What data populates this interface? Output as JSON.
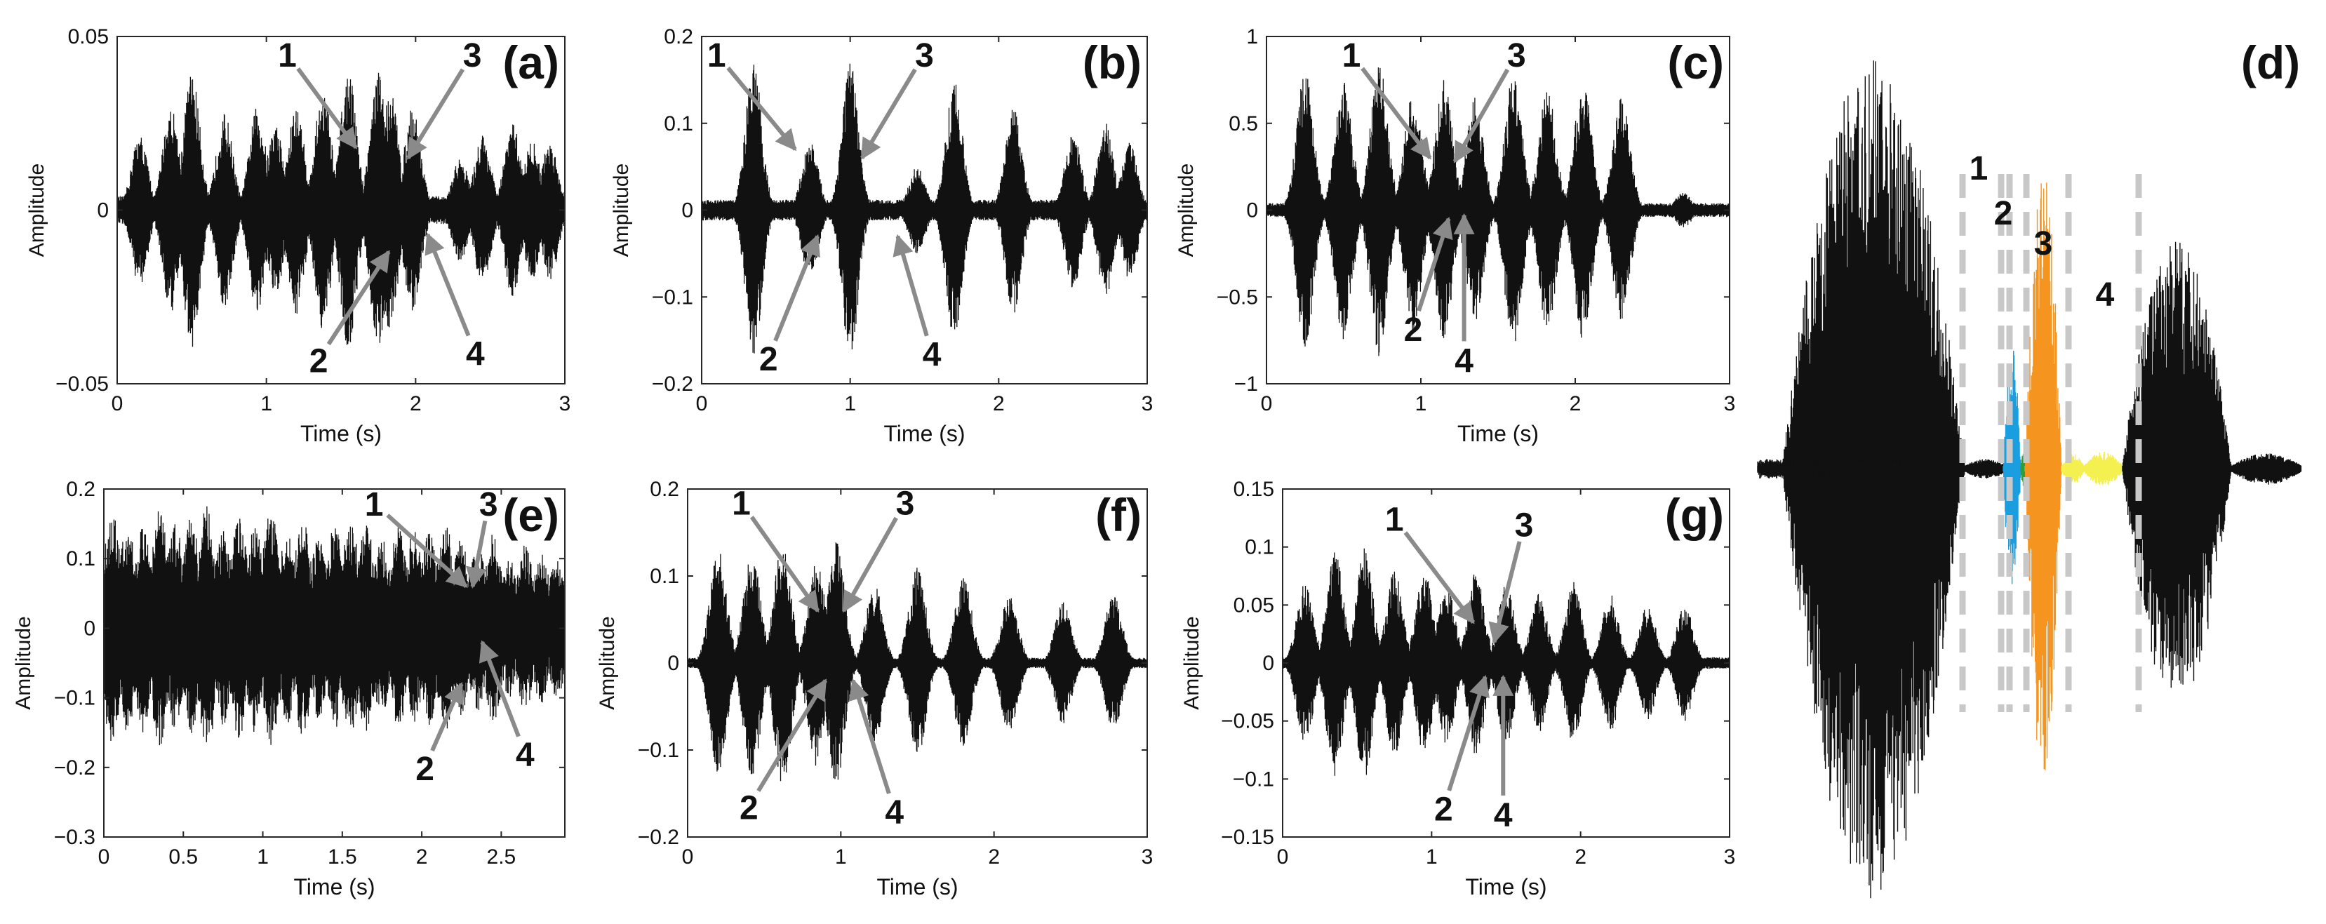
{
  "chart_data": [
    {
      "type": "line",
      "panel_label": "(a)",
      "title": "",
      "xlabel": "Time (s)",
      "ylabel": "Amplitude",
      "xlim": [
        0,
        3
      ],
      "ylim": [
        -0.05,
        0.05
      ],
      "xticks": [
        0,
        1,
        2,
        3
      ],
      "xtick_labels": [
        "0",
        "1",
        "2",
        "3"
      ],
      "yticks": [
        -0.05,
        0,
        0.05
      ],
      "ytick_labels": [
        "−0.05",
        "0",
        "0.05"
      ],
      "series": [
        {
          "name": "waveform",
          "burst_times": [
            0.15,
            0.36,
            0.5,
            0.72,
            0.94,
            1.06,
            1.2,
            1.38,
            1.55,
            1.75,
            1.83,
            1.98,
            2.3,
            2.45,
            2.65,
            2.78,
            2.9
          ],
          "burst_peaks": [
            0.022,
            0.03,
            0.04,
            0.028,
            0.03,
            0.025,
            0.03,
            0.035,
            0.04,
            0.04,
            0.035,
            0.03,
            0.015,
            0.022,
            0.025,
            0.02,
            0.02
          ],
          "noise": 0.004
        }
      ],
      "annotations": [
        {
          "text": "1",
          "value_x": 1.6,
          "value_y": 0.018,
          "label_x": 1.14,
          "label_y": 0.045
        },
        {
          "text": "3",
          "value_x": 1.95,
          "value_y": 0.015,
          "label_x": 2.38,
          "label_y": 0.045
        },
        {
          "text": "2",
          "value_x": 1.82,
          "value_y": -0.012,
          "label_x": 1.35,
          "label_y": -0.043
        },
        {
          "text": "4",
          "value_x": 2.08,
          "value_y": -0.007,
          "label_x": 2.4,
          "label_y": -0.041
        }
      ]
    },
    {
      "type": "line",
      "panel_label": "(b)",
      "title": "",
      "xlabel": "Time (s)",
      "ylabel": "Amplitude",
      "xlim": [
        0,
        3
      ],
      "ylim": [
        -0.2,
        0.2
      ],
      "xticks": [
        0,
        1,
        2,
        3
      ],
      "xtick_labels": [
        "0",
        "1",
        "2",
        "3"
      ],
      "yticks": [
        -0.2,
        -0.1,
        0,
        0.1,
        0.2
      ],
      "ytick_labels": [
        "−0.2",
        "−0.1",
        "0",
        "0.1",
        "0.2"
      ],
      "series": [
        {
          "name": "waveform",
          "burst_times": [
            0.35,
            0.73,
            1.0,
            1.45,
            1.7,
            2.1,
            2.5,
            2.72,
            2.88
          ],
          "burst_peaks": [
            0.17,
            0.08,
            0.17,
            0.05,
            0.15,
            0.12,
            0.09,
            0.1,
            0.08
          ],
          "noise": 0.012
        }
      ],
      "annotations": [
        {
          "text": "1",
          "value_x": 0.63,
          "value_y": 0.07,
          "label_x": 0.1,
          "label_y": 0.18
        },
        {
          "text": "3",
          "value_x": 1.08,
          "value_y": 0.06,
          "label_x": 1.5,
          "label_y": 0.18
        },
        {
          "text": "2",
          "value_x": 0.78,
          "value_y": -0.03,
          "label_x": 0.45,
          "label_y": -0.17
        },
        {
          "text": "4",
          "value_x": 1.32,
          "value_y": -0.03,
          "label_x": 1.55,
          "label_y": -0.165
        }
      ]
    },
    {
      "type": "line",
      "panel_label": "(c)",
      "title": "",
      "xlabel": "Time (s)",
      "ylabel": "Amplitude",
      "xlim": [
        0,
        3
      ],
      "ylim": [
        -1,
        1
      ],
      "xticks": [
        0,
        1,
        2,
        3
      ],
      "xtick_labels": [
        "0",
        "1",
        "2",
        "3"
      ],
      "yticks": [
        -1,
        -0.5,
        0,
        0.5,
        1
      ],
      "ytick_labels": [
        "−1",
        "−0.5",
        "0",
        "0.5",
        "1"
      ],
      "series": [
        {
          "name": "waveform",
          "burst_times": [
            0.25,
            0.5,
            0.73,
            0.95,
            1.15,
            1.35,
            1.6,
            1.82,
            2.05,
            2.3,
            2.7
          ],
          "burst_peaks": [
            0.8,
            0.75,
            0.85,
            0.7,
            0.75,
            0.65,
            0.8,
            0.7,
            0.75,
            0.65,
            0.1
          ],
          "noise": 0.04
        }
      ],
      "annotations": [
        {
          "text": "1",
          "value_x": 1.06,
          "value_y": 0.3,
          "label_x": 0.55,
          "label_y": 0.9
        },
        {
          "text": "3",
          "value_x": 1.22,
          "value_y": 0.28,
          "label_x": 1.62,
          "label_y": 0.9
        },
        {
          "text": "2",
          "value_x": 1.18,
          "value_y": -0.05,
          "label_x": 0.95,
          "label_y": -0.68
        },
        {
          "text": "4",
          "value_x": 1.28,
          "value_y": -0.03,
          "label_x": 1.28,
          "label_y": -0.86
        }
      ]
    },
    {
      "type": "image",
      "panel_label": "(d)",
      "title": "",
      "segments": [
        {
          "text": "1",
          "color": "#1a9ee0"
        },
        {
          "text": "2",
          "color": "#2d9e3e"
        },
        {
          "text": "3",
          "color": "#f5941e"
        },
        {
          "text": "4",
          "color": "#f3f050"
        }
      ]
    },
    {
      "type": "line",
      "panel_label": "(e)",
      "title": "",
      "xlabel": "Time (s)",
      "ylabel": "Amplitude",
      "xlim": [
        0,
        2.9
      ],
      "ylim": [
        -0.3,
        0.2
      ],
      "xticks": [
        0,
        0.5,
        1,
        1.5,
        2,
        2.5
      ],
      "xtick_labels": [
        "0",
        "0.5",
        "1",
        "1.5",
        "2",
        "2.5"
      ],
      "yticks": [
        -0.3,
        -0.2,
        -0.1,
        0,
        0.1,
        0.2
      ],
      "ytick_labels": [
        "−0.3",
        "−0.2",
        "−0.1",
        "0",
        "0.1",
        "0.2"
      ],
      "series": [
        {
          "name": "waveform",
          "burst_times": [
            0.05,
            0.15,
            0.25,
            0.35,
            0.45,
            0.55,
            0.65,
            0.75,
            0.85,
            0.95,
            1.05,
            1.15,
            1.25,
            1.35,
            1.45,
            1.55,
            1.65,
            1.75,
            1.85,
            1.95,
            2.05,
            2.15,
            2.25,
            2.35,
            2.45,
            2.55,
            2.65,
            2.75,
            2.85
          ],
          "burst_peaks": [
            0.17,
            0.15,
            0.15,
            0.17,
            0.15,
            0.16,
            0.18,
            0.14,
            0.16,
            0.15,
            0.17,
            0.14,
            0.16,
            0.13,
            0.15,
            0.16,
            0.15,
            0.13,
            0.15,
            0.14,
            0.14,
            0.15,
            0.13,
            0.12,
            0.14,
            0.1,
            0.12,
            0.11,
            0.1
          ],
          "noise": 0.02
        }
      ],
      "annotations": [
        {
          "text": "1",
          "value_x": 2.28,
          "value_y": 0.06,
          "label_x": 1.7,
          "label_y": 0.18
        },
        {
          "text": "3",
          "value_x": 2.32,
          "value_y": 0.06,
          "label_x": 2.42,
          "label_y": 0.18
        },
        {
          "text": "2",
          "value_x": 2.25,
          "value_y": -0.08,
          "label_x": 2.02,
          "label_y": -0.2
        },
        {
          "text": "4",
          "value_x": 2.38,
          "value_y": -0.02,
          "label_x": 2.65,
          "label_y": -0.18
        }
      ]
    },
    {
      "type": "line",
      "panel_label": "(f)",
      "title": "",
      "xlabel": "Time (s)",
      "ylabel": "Amplitude",
      "xlim": [
        0,
        3
      ],
      "ylim": [
        -0.2,
        0.2
      ],
      "xticks": [
        0,
        1,
        2,
        3
      ],
      "xtick_labels": [
        "0",
        "1",
        "2",
        "3"
      ],
      "yticks": [
        -0.2,
        -0.1,
        0,
        0.1,
        0.2
      ],
      "ytick_labels": [
        "−0.2",
        "−0.1",
        "0",
        "0.1",
        "0.2"
      ],
      "series": [
        {
          "name": "waveform",
          "burst_times": [
            0.2,
            0.42,
            0.62,
            0.84,
            0.97,
            1.22,
            1.5,
            1.8,
            2.1,
            2.45,
            2.78
          ],
          "burst_peaks": [
            0.13,
            0.13,
            0.14,
            0.12,
            0.14,
            0.09,
            0.11,
            0.1,
            0.08,
            0.07,
            0.08
          ],
          "noise": 0.006
        }
      ],
      "annotations": [
        {
          "text": "1",
          "value_x": 0.85,
          "value_y": 0.06,
          "label_x": 0.35,
          "label_y": 0.185
        },
        {
          "text": "3",
          "value_x": 1.02,
          "value_y": 0.06,
          "label_x": 1.42,
          "label_y": 0.185
        },
        {
          "text": "2",
          "value_x": 0.9,
          "value_y": -0.02,
          "label_x": 0.4,
          "label_y": -0.165
        },
        {
          "text": "4",
          "value_x": 1.08,
          "value_y": -0.02,
          "label_x": 1.35,
          "label_y": -0.17
        }
      ]
    },
    {
      "type": "line",
      "panel_label": "(g)",
      "title": "",
      "xlabel": "Time (s)",
      "ylabel": "Amplitude",
      "xlim": [
        0,
        3
      ],
      "ylim": [
        -0.15,
        0.15
      ],
      "xticks": [
        0,
        1,
        2,
        3
      ],
      "xtick_labels": [
        "0",
        "1",
        "2",
        "3"
      ],
      "yticks": [
        -0.15,
        -0.1,
        -0.05,
        0,
        0.05,
        0.1,
        0.15
      ],
      "ytick_labels": [
        "−0.15",
        "−0.1",
        "−0.05",
        "0",
        "0.05",
        "0.1",
        "0.15"
      ],
      "series": [
        {
          "name": "waveform",
          "burst_times": [
            0.15,
            0.35,
            0.55,
            0.75,
            0.95,
            1.1,
            1.3,
            1.5,
            1.72,
            1.95,
            2.2,
            2.45,
            2.7
          ],
          "burst_peaks": [
            0.07,
            0.1,
            0.1,
            0.08,
            0.08,
            0.07,
            0.08,
            0.07,
            0.06,
            0.07,
            0.06,
            0.05,
            0.05
          ],
          "noise": 0.005
        }
      ],
      "annotations": [
        {
          "text": "1",
          "value_x": 1.28,
          "value_y": 0.035,
          "label_x": 0.75,
          "label_y": 0.125
        },
        {
          "text": "3",
          "value_x": 1.42,
          "value_y": 0.018,
          "label_x": 1.62,
          "label_y": 0.12
        },
        {
          "text": "2",
          "value_x": 1.36,
          "value_y": -0.012,
          "label_x": 1.08,
          "label_y": -0.125
        },
        {
          "text": "4",
          "value_x": 1.48,
          "value_y": -0.012,
          "label_x": 1.48,
          "label_y": -0.13
        }
      ]
    }
  ]
}
